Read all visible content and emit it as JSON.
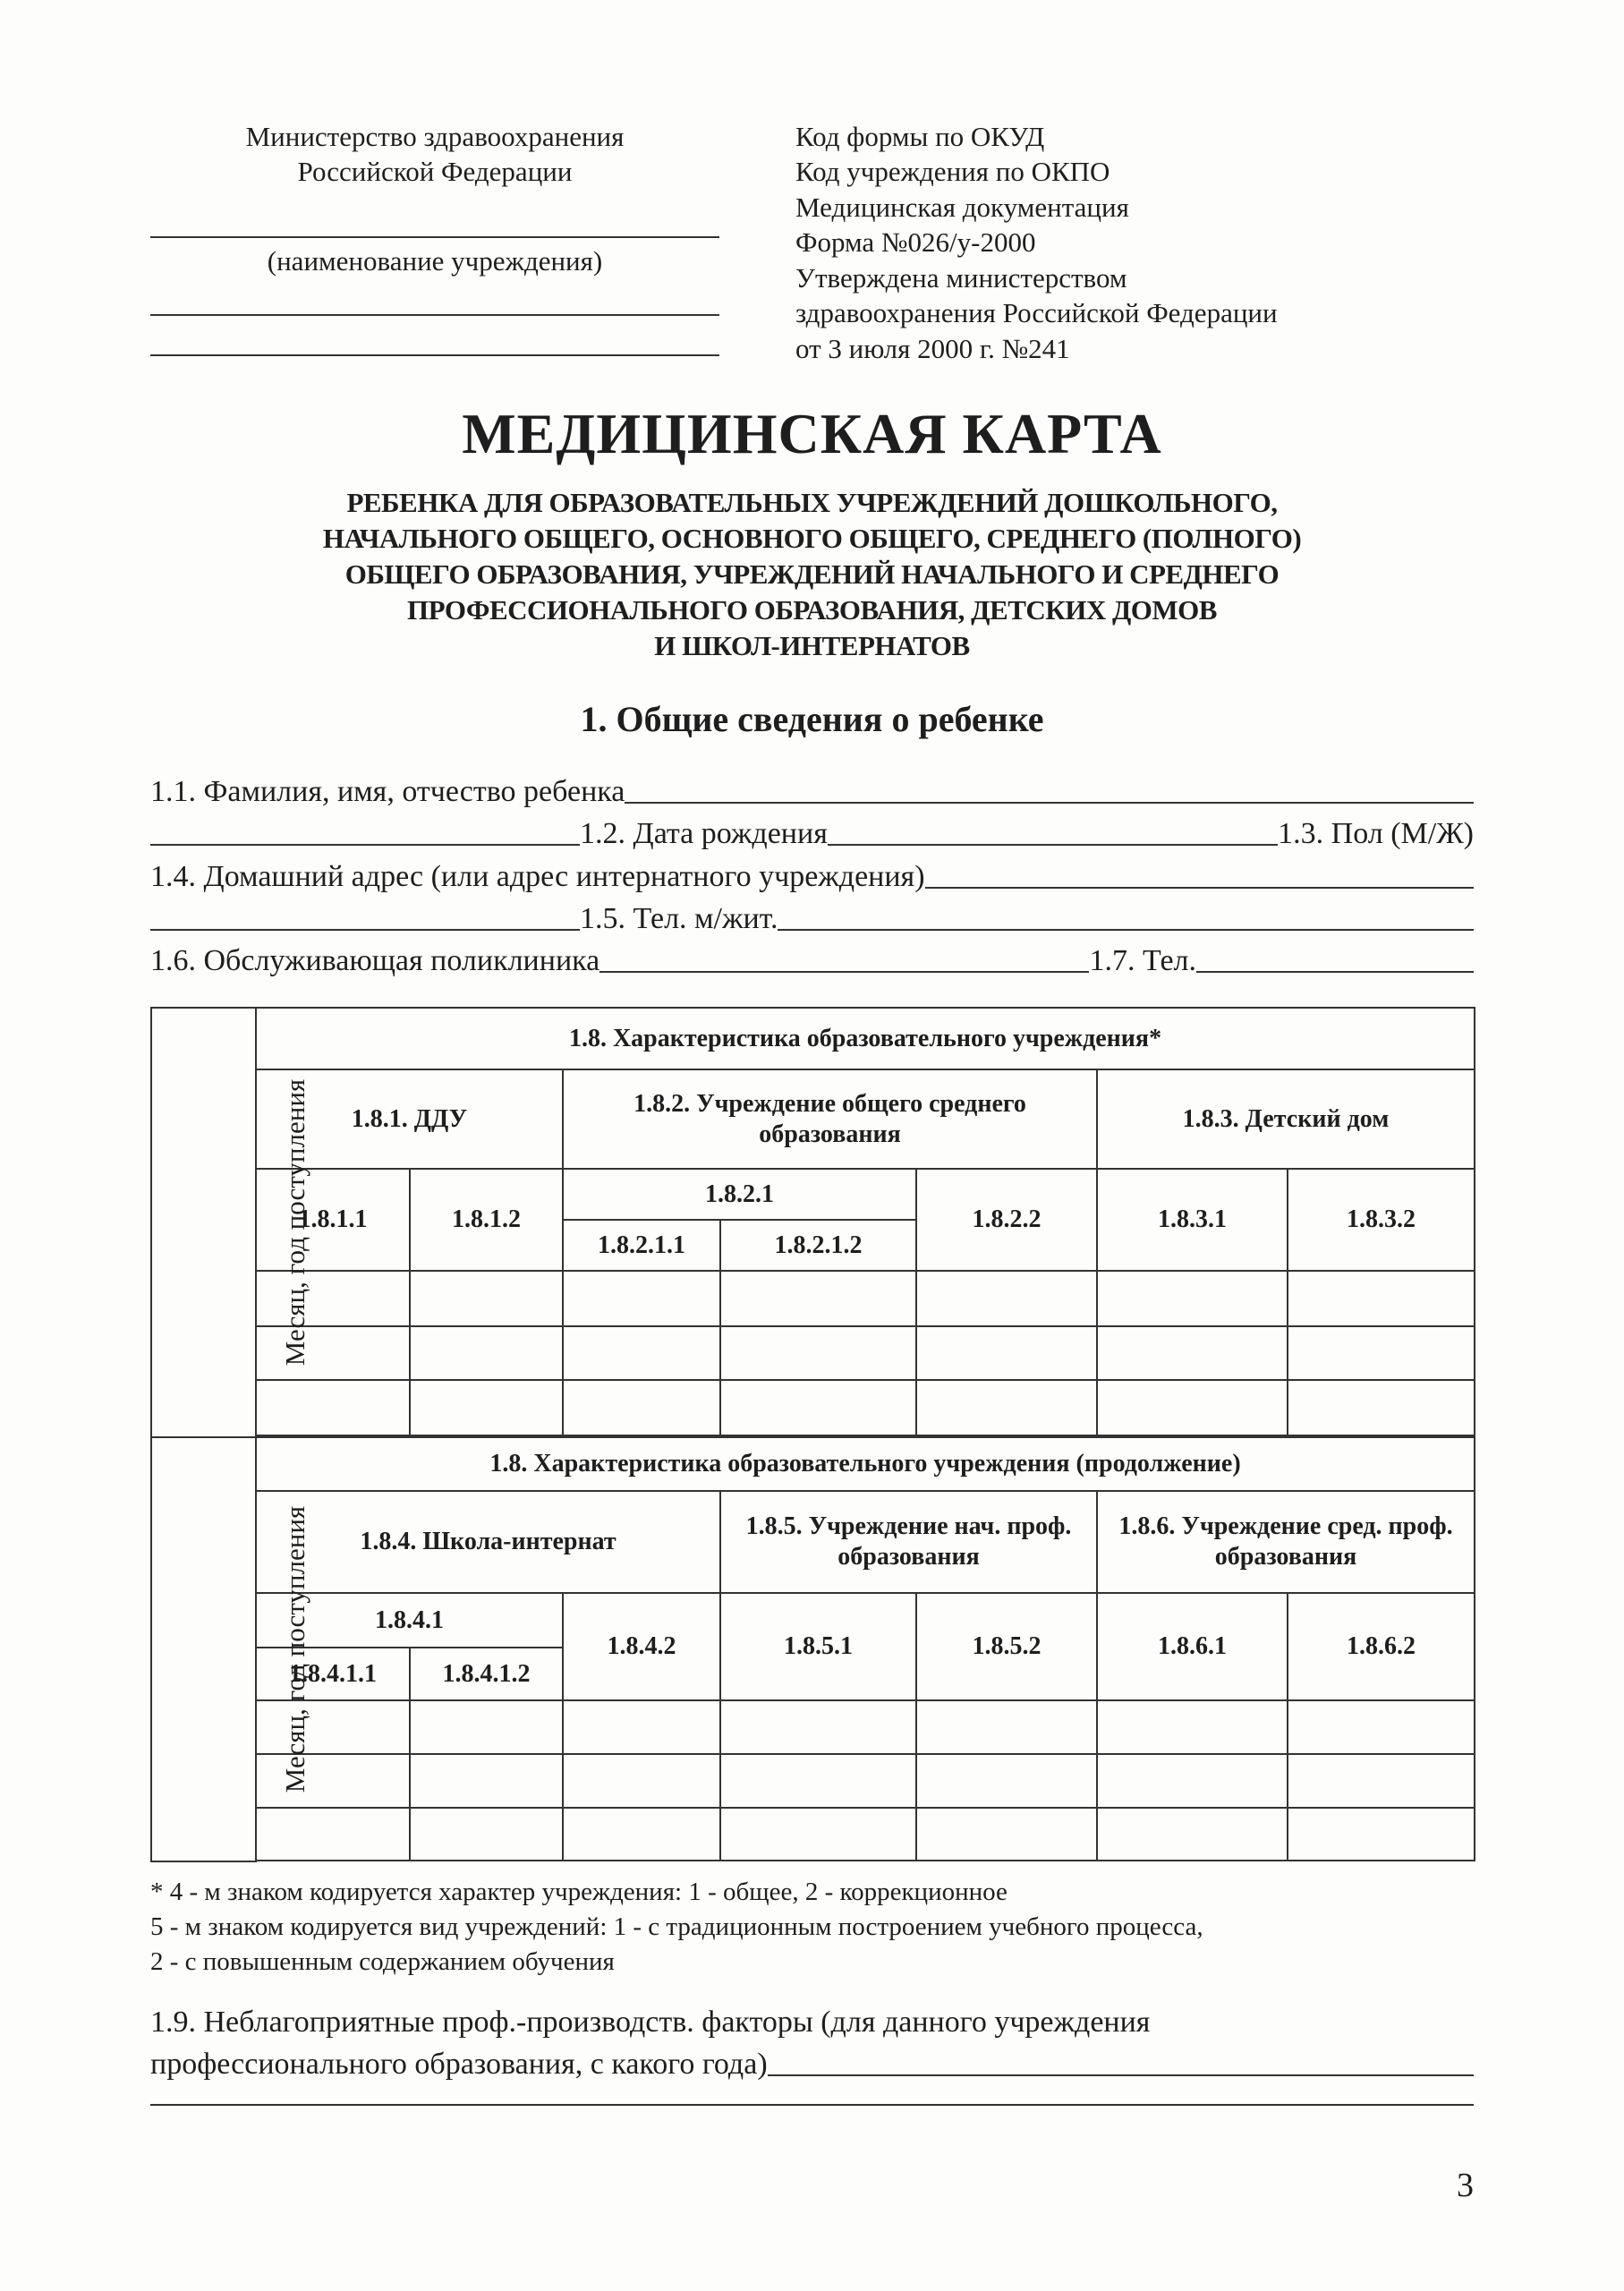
{
  "header_left": {
    "ministry_line1": "Министерство здравоохранения",
    "ministry_line2": "Российской Федерации",
    "institution_caption": "(наименование учреждения)"
  },
  "header_right": {
    "lines": [
      "Код формы по ОКУД",
      "Код учреждения по ОКПО",
      "Медицинская документация",
      "Форма №026/у-2000",
      "Утверждена министерством",
      "здравоохранения Российской Федерации",
      "от 3 июля 2000 г. №241"
    ]
  },
  "title": "МЕДИЦИНСКАЯ КАРТА",
  "subtitle_lines": [
    "РЕБЕНКА ДЛЯ ОБРАЗОВАТЕЛЬНЫХ УЧРЕЖДЕНИЙ ДОШКОЛЬНОГО,",
    "НАЧАЛЬНОГО ОБЩЕГО, ОСНОВНОГО ОБЩЕГО, СРЕДНЕГО (ПОЛНОГО)",
    "ОБЩЕГО ОБРАЗОВАНИЯ, УЧРЕЖДЕНИЙ НАЧАЛЬНОГО И СРЕДНЕГО",
    "ПРОФЕССИОНАЛЬНОГО ОБРАЗОВАНИЯ, ДЕТСКИХ ДОМОВ",
    "И ШКОЛ-ИНТЕРНАТОВ"
  ],
  "section1_title": "1. Общие сведения о ребенке",
  "fields": {
    "f1_1": "1.1. Фамилия, имя, отчество ребенка",
    "f1_2": "1.2. Дата рождения",
    "f1_3": "1.3. Пол (М/Ж)",
    "f1_4": "1.4. Домашний адрес (или адрес интернатного учреждения)",
    "f1_5": "1.5. Тел. м/жит.",
    "f1_6": "1.6. Обслуживающая поликлиника",
    "f1_7": "1.7. Тел."
  },
  "table": {
    "month_label": "Месяц, год поступления",
    "part1": {
      "heading": "1.8. Характеристика образовательного учреждения*",
      "groups": [
        "1.8.1. ДДУ",
        "1.8.2. Учреждение общего среднего образования",
        "1.8.3. Детский дом"
      ],
      "codes": {
        "c1": "1.8.1.1",
        "c2": "1.8.1.2",
        "c3": "1.8.2.1",
        "c3a": "1.8.2.1.1",
        "c3b": "1.8.2.1.2",
        "c4": "1.8.2.2",
        "c5": "1.8.3.1",
        "c6": "1.8.3.2"
      }
    },
    "part2": {
      "heading": "1.8. Характеристика образовательного учреждения (продолжение)",
      "groups": [
        "1.8.4. Школа-интернат",
        "1.8.5. Учреждение нач. проф. образования",
        "1.8.6. Учреждение сред. проф. образования"
      ],
      "codes": {
        "c1": "1.8.4.1",
        "c1a": "1.8.4.1.1",
        "c1b": "1.8.4.1.2",
        "c2": "1.8.4.2",
        "c3": "1.8.5.1",
        "c4": "1.8.5.2",
        "c5": "1.8.6.1",
        "c6": "1.8.6.2"
      }
    }
  },
  "footnotes": [
    "* 4 - м знаком кодируется характер учреждения: 1 - общее, 2 - коррекционное",
    "5 - м знаком кодируется вид учреждений: 1 - с традиционным построением учебного процесса,",
    "2 - с повышенным содержанием обучения"
  ],
  "field1_9": {
    "line1": "1.9. Неблагоприятные проф.-производств. факторы (для данного учреждения",
    "line2": "профессионального образования, с какого года)"
  },
  "page_number": "3"
}
